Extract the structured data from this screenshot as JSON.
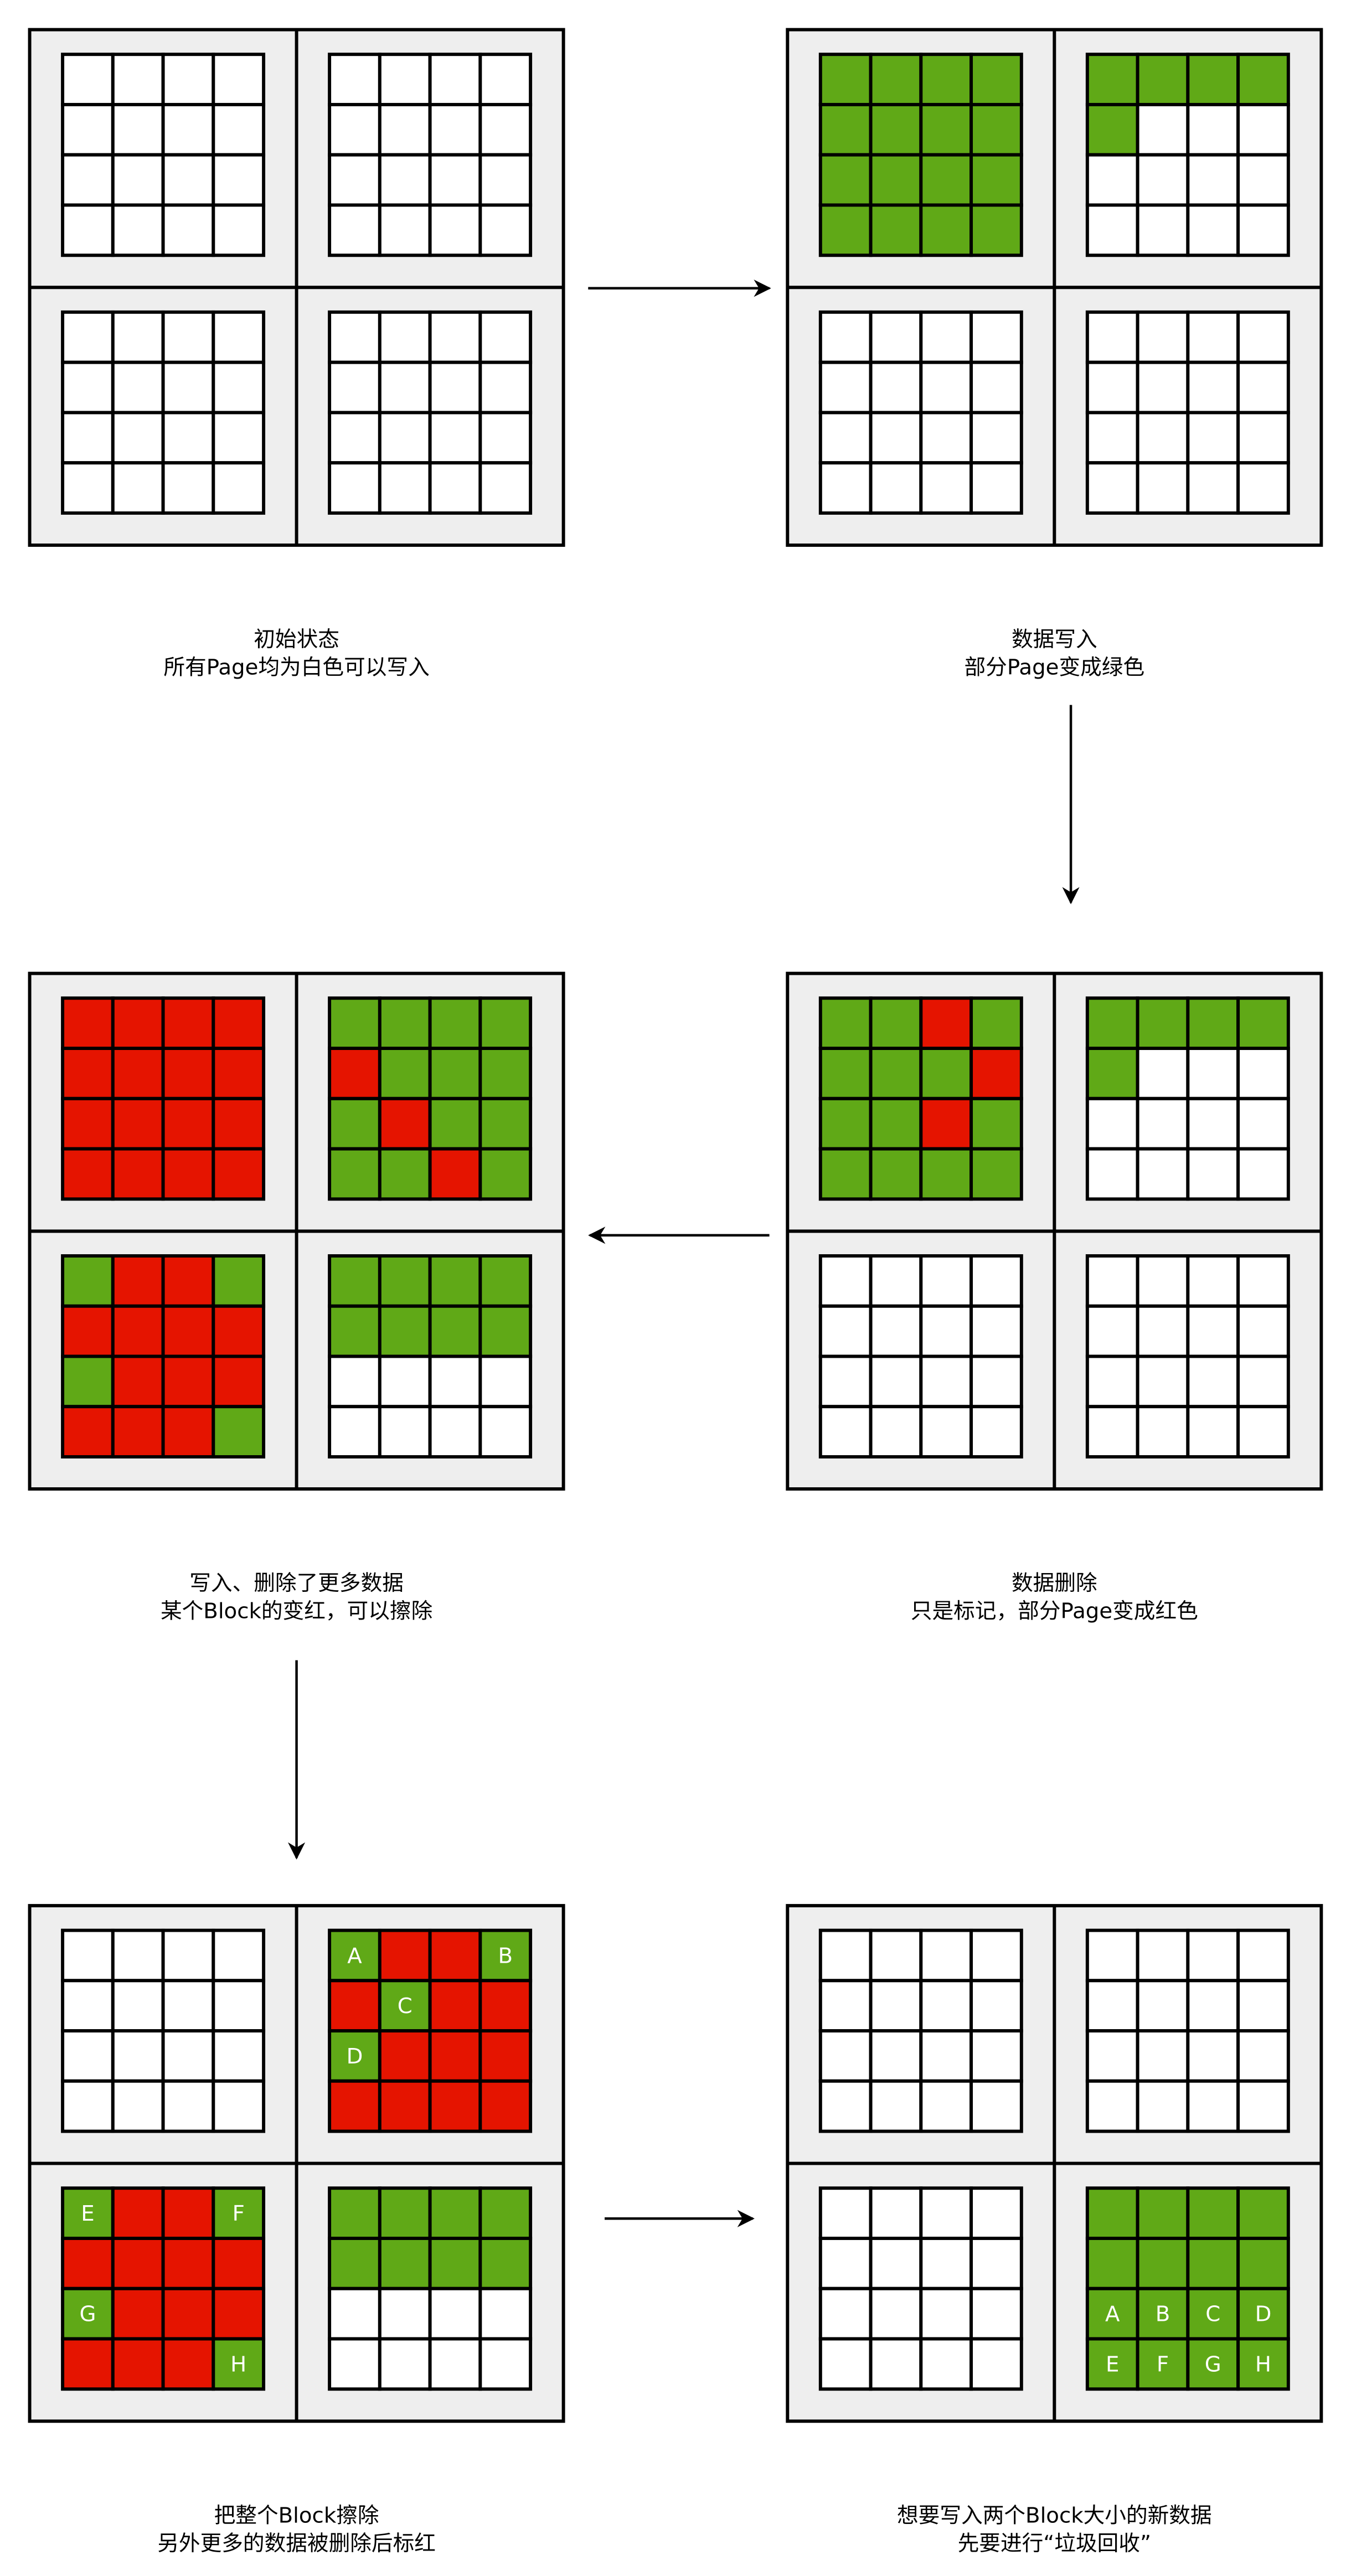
{
  "panels": [
    {
      "caption_lines": [
        "初始状态",
        "所有Page均为白色可以写入"
      ]
    },
    {
      "caption_lines": [
        "数据写入",
        "部分Page变成绿色"
      ]
    },
    {
      "caption_lines": [
        "数据删除",
        "只是标记，部分Page变成红色"
      ]
    },
    {
      "caption_lines": [
        "写入、删除了更多数据",
        "某个Block的变红，可以擦除"
      ]
    },
    {
      "caption_lines": [
        "把整个Block擦除",
        "另外更多的数据被删除后标红"
      ],
      "block_labels": [
        null,
        [
          "A",
          null,
          null,
          "B",
          null,
          "C",
          null,
          null,
          "D",
          null,
          null,
          null,
          null,
          null,
          null,
          null
        ],
        [
          "E",
          null,
          null,
          "F",
          null,
          null,
          null,
          null,
          "G",
          null,
          null,
          null,
          null,
          null,
          null,
          "H"
        ],
        null
      ]
    },
    {
      "caption_lines": [
        "想要写入两个Block大小的新数据",
        "先要进行“垃圾回收”"
      ],
      "block_labels": [
        null,
        null,
        null,
        [
          null,
          null,
          null,
          null,
          null,
          null,
          null,
          null,
          "A",
          "B",
          "C",
          "D",
          "E",
          "F",
          "G",
          "H"
        ]
      ]
    }
  ]
}
